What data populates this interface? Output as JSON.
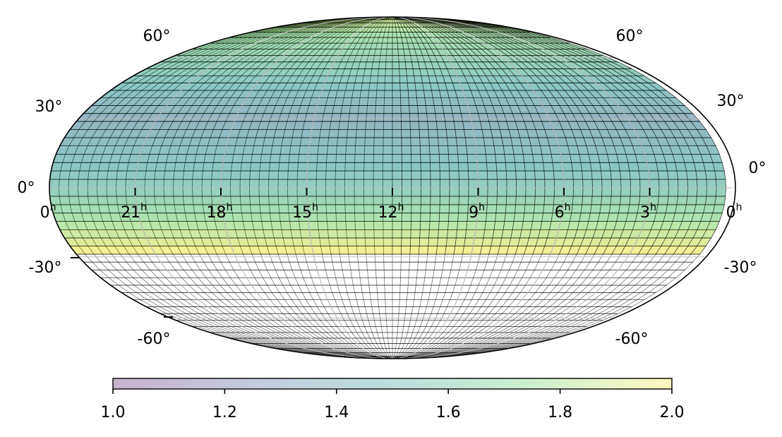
{
  "chart_data": {
    "type": "heatmap",
    "projection": "mollweide",
    "grid": true,
    "ra_tick_labels": [
      {
        "hours": 0,
        "text": "0",
        "sup": "h"
      },
      {
        "hours": 21,
        "text": "21",
        "sup": "h"
      },
      {
        "hours": 18,
        "text": "18",
        "sup": "h"
      },
      {
        "hours": 15,
        "text": "15",
        "sup": "h"
      },
      {
        "hours": 12,
        "text": "12",
        "sup": "h"
      },
      {
        "hours": 9,
        "text": "9",
        "sup": "h"
      },
      {
        "hours": 6,
        "text": "6",
        "sup": "h"
      },
      {
        "hours": 3,
        "text": "3",
        "sup": "h"
      },
      {
        "hours": 0,
        "text": "0",
        "sup": "h"
      }
    ],
    "dec_tick_labels": [
      {
        "deg": 60,
        "text": "60°"
      },
      {
        "deg": 30,
        "text": "30°"
      },
      {
        "deg": 0,
        "text": "0°"
      },
      {
        "deg": -30,
        "text": "-30°"
      },
      {
        "deg": -60,
        "text": "-60°"
      }
    ],
    "colorbar": {
      "min": 1.0,
      "max": 2.0,
      "tick_labels": [
        "1.0",
        "1.2",
        "1.4",
        "1.6",
        "1.8",
        "2.0"
      ],
      "colormap": "viridis",
      "alpha": 0.3
    },
    "data_description_values": {
      "dec_range_filled": [
        -30,
        90
      ],
      "dec_band_step_deg": 3.6,
      "value_at_dec_minus30": 2.0,
      "value_at_dec_0": 1.56,
      "value_at_dec_plus30": 1.38,
      "value_at_dec_plus60": 1.62,
      "value_at_dec_plus90": 1.9
    },
    "colors": {
      "viridis_stops": [
        "#440154",
        "#3b528b",
        "#21918c",
        "#5ec962",
        "#fde725"
      ],
      "cell_edge": "#000000",
      "grid_line": "#bbbbbb"
    }
  }
}
